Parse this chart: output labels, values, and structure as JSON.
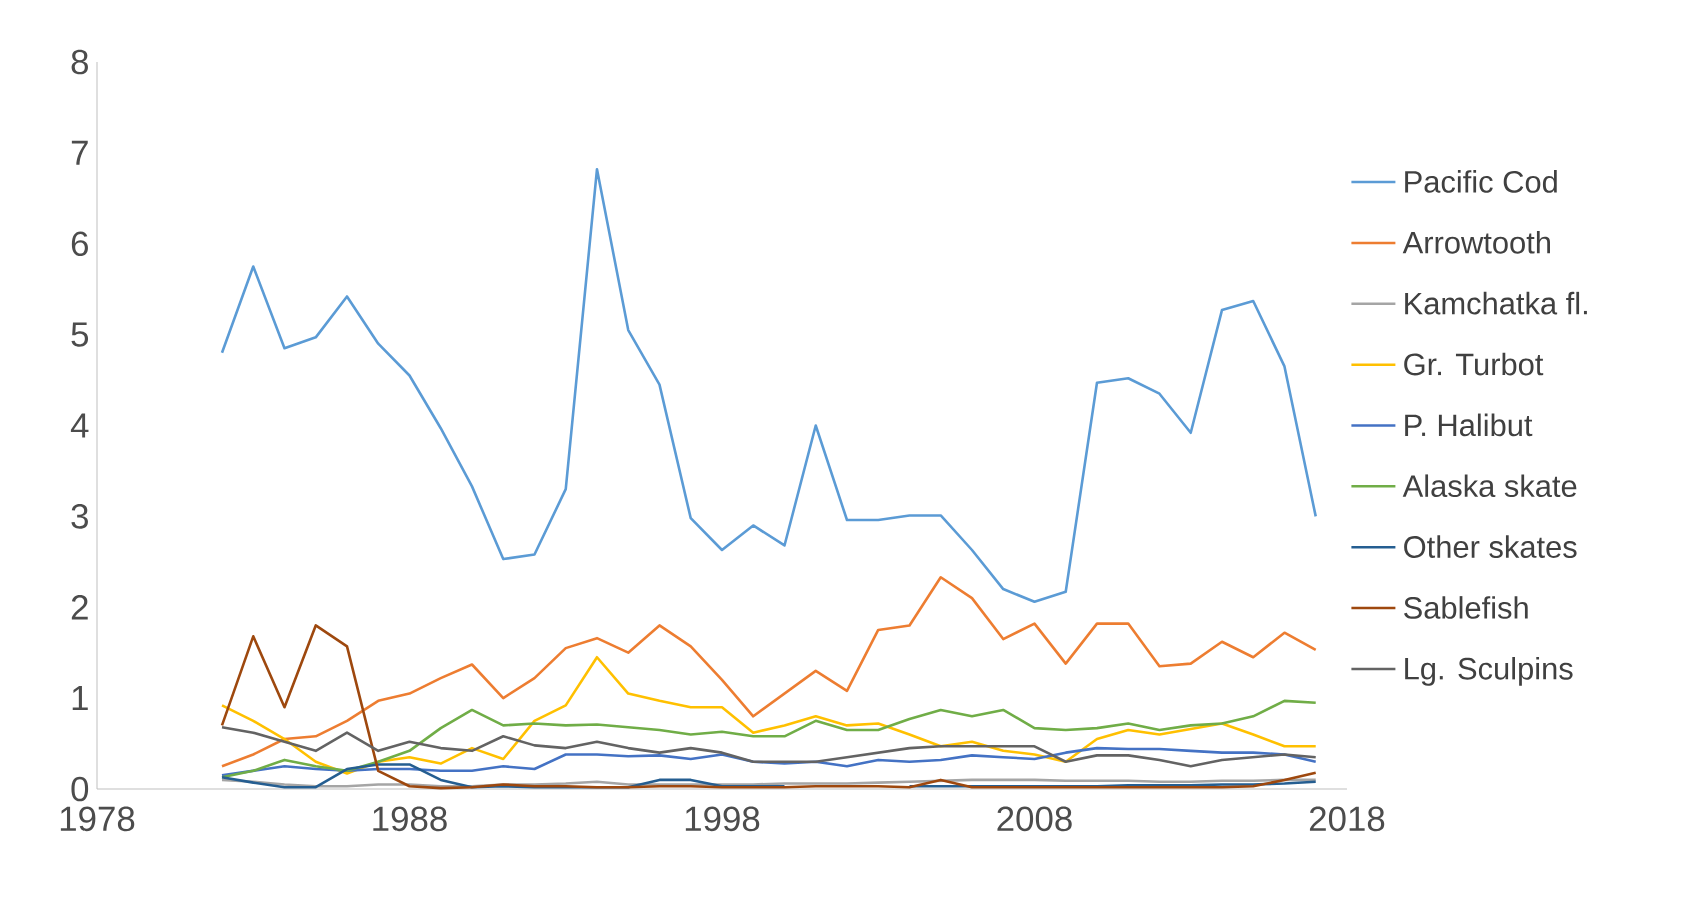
{
  "chart_data": {
    "type": "line",
    "x": [
      1982,
      1983,
      1984,
      1985,
      1986,
      1987,
      1988,
      1989,
      1990,
      1991,
      1992,
      1993,
      1994,
      1995,
      1996,
      1997,
      1998,
      1999,
      2000,
      2001,
      2002,
      2003,
      2004,
      2005,
      2006,
      2007,
      2008,
      2009,
      2010,
      2011,
      2012,
      2013,
      2014,
      2015,
      2016,
      2017
    ],
    "xlim": [
      1978,
      2018
    ],
    "xticks": [
      1978,
      1988,
      1998,
      2008,
      2018
    ],
    "ylim": [
      0,
      8
    ],
    "yticks": [
      0,
      1,
      2,
      3,
      4,
      5,
      6,
      7,
      8
    ],
    "grid": false,
    "legend": "right",
    "marker": "none",
    "line_style": "solid",
    "series": [
      {
        "name": "Pacific Cod",
        "color": "#5b9bd5",
        "values": [
          4.8,
          5.75,
          4.85,
          4.97,
          5.42,
          4.9,
          4.55,
          3.97,
          3.33,
          2.53,
          2.58,
          3.3,
          6.82,
          5.05,
          4.45,
          2.98,
          2.63,
          2.9,
          2.68,
          4.0,
          2.96,
          2.96,
          3.01,
          3.01,
          2.63,
          2.2,
          2.06,
          2.17,
          4.47,
          4.52,
          4.35,
          3.92,
          5.27,
          5.37,
          4.65,
          3.0
        ]
      },
      {
        "name": "Arrowtooth",
        "color": "#ed7d31",
        "values": [
          0.25,
          0.38,
          0.55,
          0.58,
          0.75,
          0.97,
          1.05,
          1.22,
          1.37,
          1.0,
          1.22,
          1.55,
          1.66,
          1.5,
          1.8,
          1.57,
          1.2,
          0.8,
          1.05,
          1.3,
          1.08,
          1.75,
          1.8,
          2.33,
          2.1,
          1.65,
          1.82,
          1.38,
          1.82,
          1.82,
          1.35,
          1.38,
          1.62,
          1.45,
          1.72,
          1.53
        ]
      },
      {
        "name": "Kamchatka fl.",
        "color": "#a5a5a5",
        "values": [
          0.1,
          0.08,
          0.05,
          0.03,
          0.03,
          0.05,
          0.05,
          0.03,
          0.03,
          0.05,
          0.05,
          0.06,
          0.08,
          0.05,
          0.05,
          0.05,
          0.05,
          0.05,
          0.06,
          0.06,
          0.06,
          0.07,
          0.08,
          0.09,
          0.1,
          0.1,
          0.1,
          0.09,
          0.09,
          0.09,
          0.08,
          0.08,
          0.09,
          0.09,
          0.1,
          0.1
        ]
      },
      {
        "name": "Gr. Turbot",
        "color": "#ffc000",
        "values": [
          0.92,
          0.75,
          0.55,
          0.3,
          0.17,
          0.3,
          0.35,
          0.28,
          0.45,
          0.33,
          0.75,
          0.92,
          1.45,
          1.05,
          0.97,
          0.9,
          0.9,
          0.62,
          0.7,
          0.8,
          0.7,
          0.72,
          0.6,
          0.47,
          0.52,
          0.42,
          0.38,
          0.3,
          0.55,
          0.65,
          0.6,
          0.66,
          0.72,
          0.6,
          0.47,
          0.47
        ]
      },
      {
        "name": "P. Halibut",
        "color": "#4472c4",
        "values": [
          0.15,
          0.2,
          0.25,
          0.22,
          0.2,
          0.22,
          0.22,
          0.2,
          0.2,
          0.25,
          0.22,
          0.38,
          0.38,
          0.36,
          0.37,
          0.33,
          0.38,
          0.3,
          0.28,
          0.3,
          0.25,
          0.32,
          0.3,
          0.32,
          0.37,
          0.35,
          0.33,
          0.4,
          0.45,
          0.44,
          0.44,
          0.42,
          0.4,
          0.4,
          0.38,
          0.3
        ]
      },
      {
        "name": "Alaska skate",
        "color": "#70ad47",
        "values": [
          0.13,
          0.2,
          0.32,
          0.25,
          0.2,
          0.3,
          0.42,
          0.67,
          0.87,
          0.7,
          0.72,
          0.7,
          0.71,
          0.68,
          0.65,
          0.6,
          0.63,
          0.58,
          0.58,
          0.75,
          0.65,
          0.65,
          0.77,
          0.87,
          0.8,
          0.87,
          0.67,
          0.65,
          0.67,
          0.72,
          0.65,
          0.7,
          0.72,
          0.8,
          0.97,
          0.95
        ]
      },
      {
        "name": "Other skates",
        "color": "#255e91",
        "values": [
          0.13,
          0.07,
          0.02,
          0.02,
          0.22,
          0.27,
          0.27,
          0.1,
          0.02,
          0.03,
          0.02,
          0.02,
          0.02,
          0.02,
          0.1,
          0.1,
          0.03,
          0.03,
          0.03,
          null,
          null,
          null,
          0.03,
          0.03,
          0.03,
          0.03,
          0.03,
          0.03,
          0.03,
          0.04,
          0.04,
          0.04,
          0.05,
          0.05,
          0.06,
          0.08
        ]
      },
      {
        "name": "Sablefish",
        "color": "#9e480e",
        "values": [
          0.7,
          1.68,
          0.9,
          1.8,
          1.57,
          0.2,
          0.03,
          0.01,
          0.02,
          0.05,
          0.03,
          0.03,
          0.02,
          0.02,
          0.03,
          0.03,
          0.02,
          0.02,
          0.02,
          0.03,
          0.03,
          0.03,
          0.02,
          0.1,
          0.02,
          0.02,
          0.02,
          0.02,
          0.02,
          0.02,
          0.02,
          0.02,
          0.02,
          0.03,
          0.1,
          0.18
        ]
      },
      {
        "name": "Lg. Sculpins",
        "color": "#636363",
        "values": [
          0.68,
          0.62,
          0.52,
          0.42,
          0.62,
          0.42,
          0.52,
          0.45,
          0.42,
          0.58,
          0.48,
          0.45,
          0.52,
          0.45,
          0.4,
          0.45,
          0.4,
          0.3,
          0.3,
          0.3,
          0.35,
          0.4,
          0.45,
          0.47,
          0.47,
          0.47,
          0.47,
          0.3,
          0.37,
          0.37,
          0.32,
          0.25,
          0.32,
          0.35,
          0.38,
          0.35
        ]
      }
    ]
  }
}
